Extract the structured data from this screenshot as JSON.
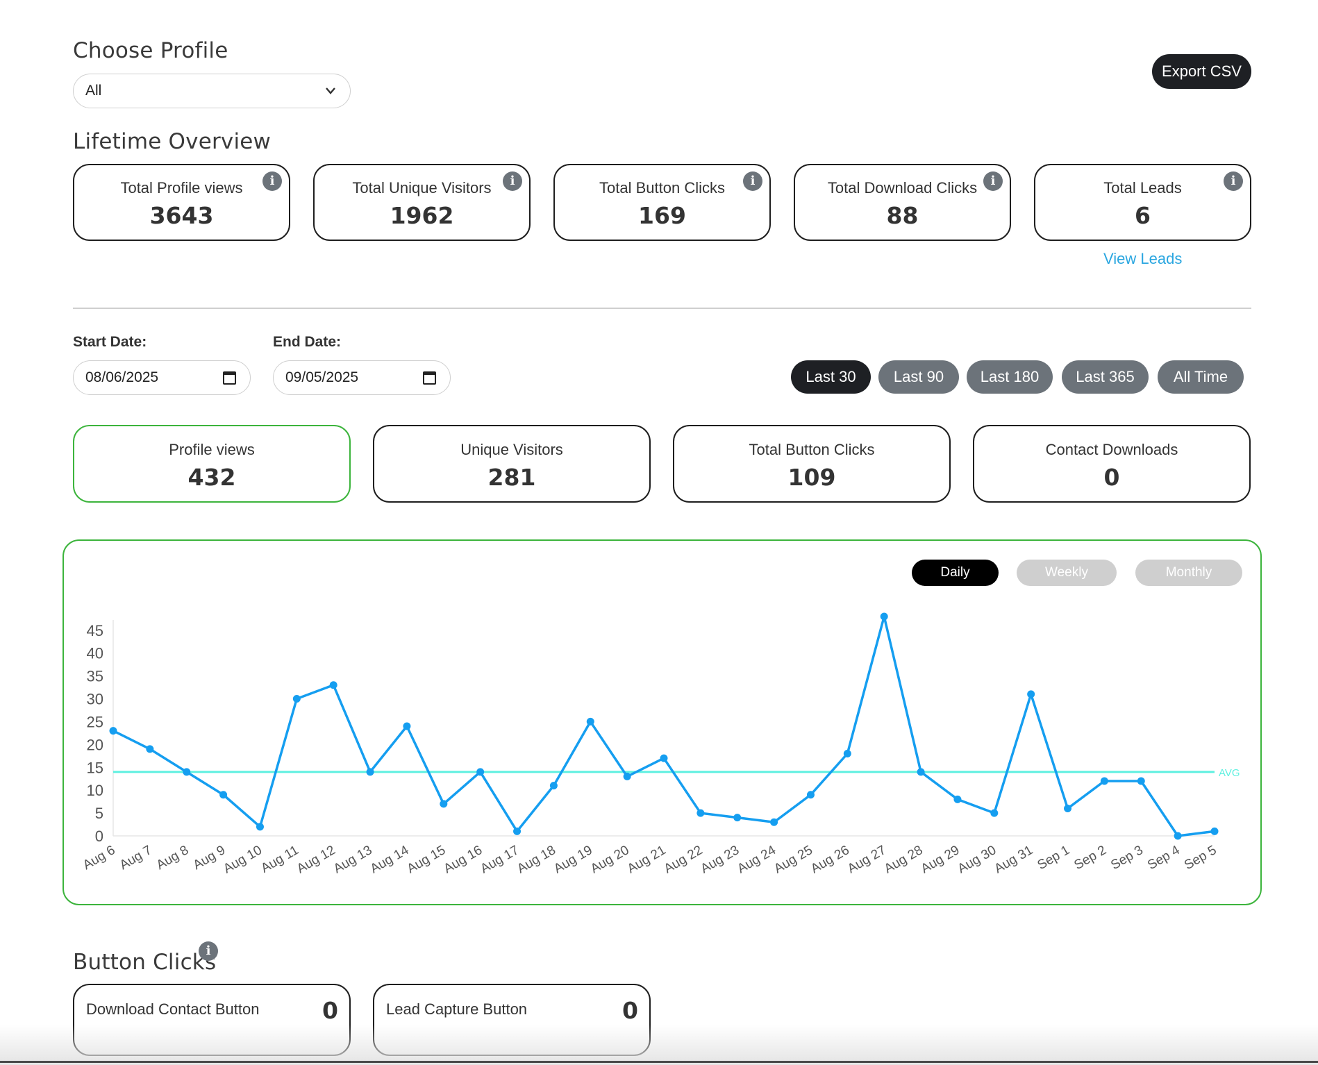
{
  "profile": {
    "title": "Choose Profile",
    "selected": "All"
  },
  "export_label": "Export CSV",
  "lifetime": {
    "title": "Lifetime Overview",
    "cards": [
      {
        "label": "Total Profile views",
        "value": "3643"
      },
      {
        "label": "Total Unique Visitors",
        "value": "1962"
      },
      {
        "label": "Total Button Clicks",
        "value": "169"
      },
      {
        "label": "Total Download Clicks",
        "value": "88"
      },
      {
        "label": "Total Leads",
        "value": "6"
      }
    ],
    "view_leads": "View Leads"
  },
  "dates": {
    "start_label": "Start Date:",
    "start_value": "08/06/2025",
    "end_label": "End Date:",
    "end_value": "09/05/2025"
  },
  "ranges": [
    "Last 30",
    "Last 90",
    "Last 180",
    "Last 365",
    "All Time"
  ],
  "active_range": "Last 30",
  "period": {
    "cards": [
      {
        "label": "Profile views",
        "value": "432"
      },
      {
        "label": "Unique Visitors",
        "value": "281"
      },
      {
        "label": "Total Button Clicks",
        "value": "109"
      },
      {
        "label": "Contact Downloads",
        "value": "0"
      }
    ]
  },
  "granularity": [
    "Daily",
    "Weekly",
    "Monthly"
  ],
  "active_granularity": "Daily",
  "chart_data": {
    "type": "line",
    "x": [
      "Aug 6",
      "Aug 7",
      "Aug 8",
      "Aug 9",
      "Aug 10",
      "Aug 11",
      "Aug 12",
      "Aug 13",
      "Aug 14",
      "Aug 15",
      "Aug 16",
      "Aug 17",
      "Aug 18",
      "Aug 19",
      "Aug 20",
      "Aug 21",
      "Aug 22",
      "Aug 23",
      "Aug 24",
      "Aug 25",
      "Aug 26",
      "Aug 27",
      "Aug 28",
      "Aug 29",
      "Aug 30",
      "Aug 31",
      "Sep 1",
      "Sep 2",
      "Sep 3",
      "Sep 4",
      "Sep 5"
    ],
    "series": [
      {
        "values": [
          23,
          19,
          14,
          9,
          2,
          30,
          33,
          14,
          24,
          7,
          14,
          1,
          11,
          25,
          13,
          17,
          5,
          4,
          3,
          9,
          18,
          48,
          14,
          8,
          5,
          31,
          6,
          12,
          12,
          0,
          1
        ]
      }
    ],
    "avg": 14,
    "avg_label": "AVG",
    "yticks": [
      0,
      5,
      10,
      15,
      20,
      25,
      30,
      35,
      40,
      45
    ],
    "ylim": [
      0,
      48
    ],
    "colors": {
      "line": "#159ef0",
      "avg": "#5ef0e0",
      "axis": "#e6e6e6"
    }
  },
  "button_clicks": {
    "title": "Button Clicks",
    "cards": [
      {
        "label": "Download Contact Button",
        "value": "0"
      },
      {
        "label": "Lead Capture Button",
        "value": "0"
      }
    ]
  }
}
